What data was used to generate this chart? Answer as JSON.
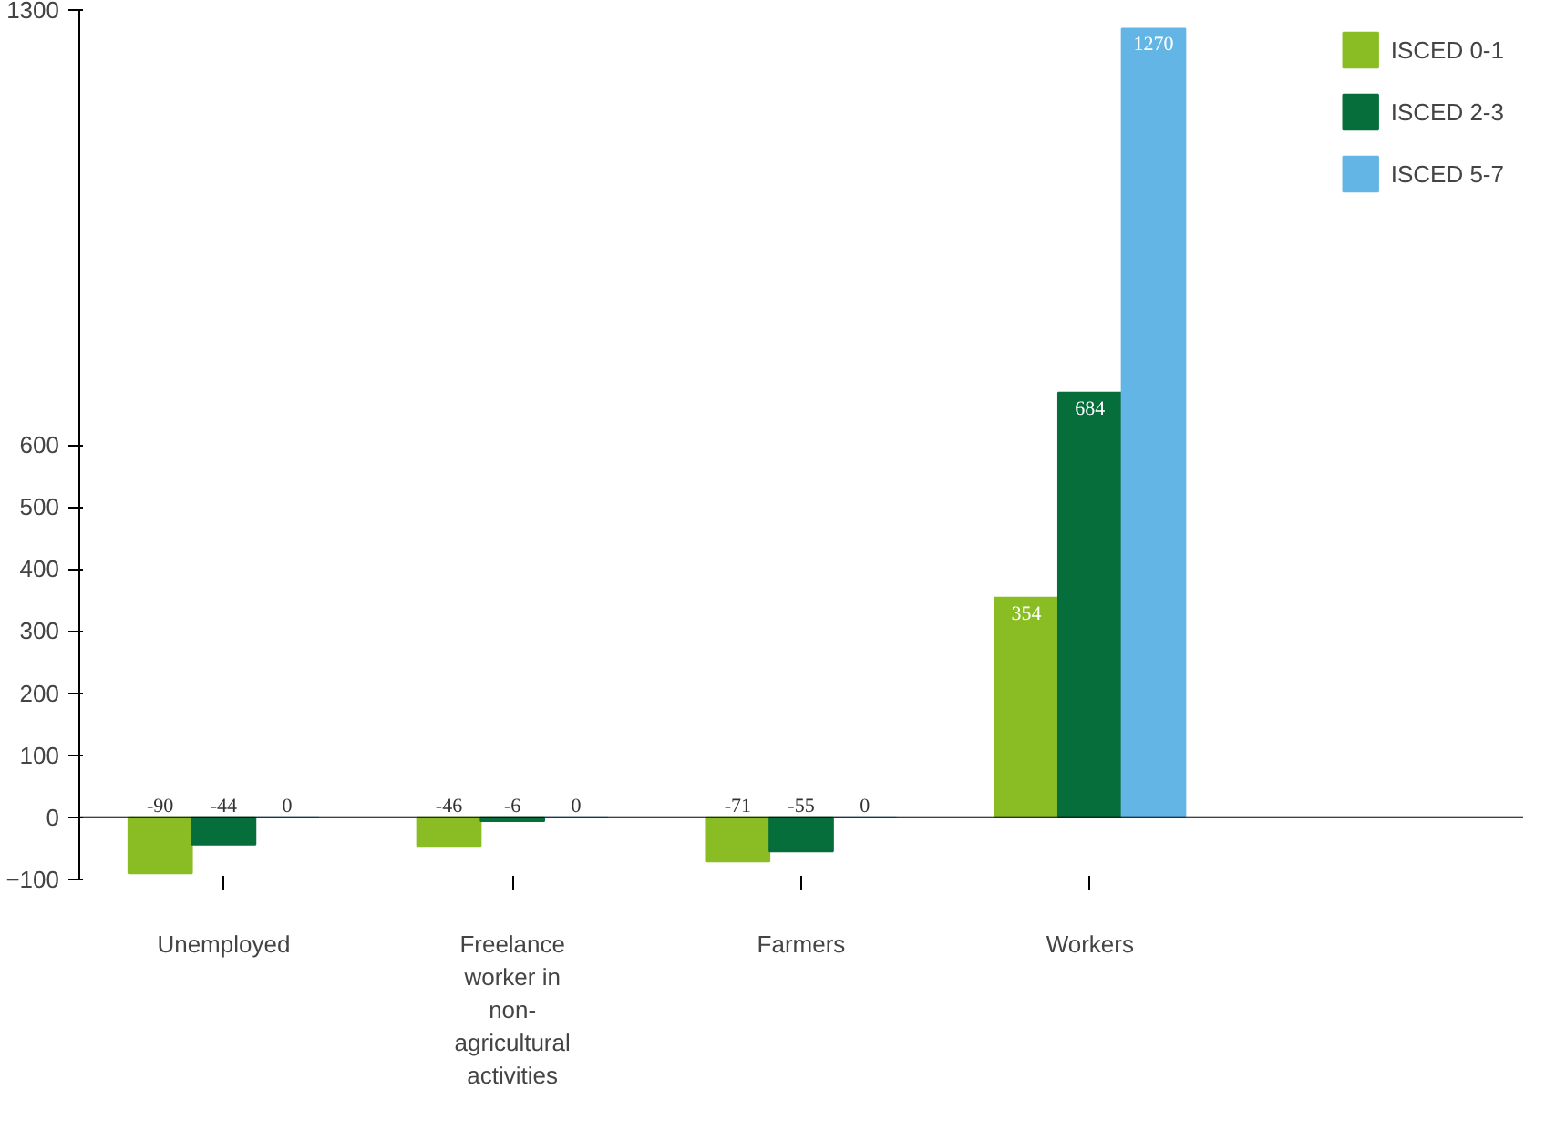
{
  "chart_data": {
    "type": "bar",
    "categories": [
      "Unemployed",
      "Freelance worker in non-agricultural activities",
      "Farmers",
      "Workers"
    ],
    "series": [
      {
        "name": "ISCED 0-1",
        "color": "#8abd24",
        "values": [
          -90,
          -46,
          -71,
          354
        ]
      },
      {
        "name": "ISCED 2-3",
        "color": "#066e3a",
        "values": [
          -44,
          -6,
          -55,
          684
        ]
      },
      {
        "name": "ISCED 5-7",
        "color": "#63b5e5",
        "values": [
          0,
          0,
          0,
          1270
        ]
      }
    ],
    "ylim": [
      -100,
      1300
    ],
    "yticks": [
      -100,
      0,
      100,
      200,
      300,
      400,
      500,
      600,
      1300
    ],
    "data_labels": true,
    "legend": "right"
  }
}
